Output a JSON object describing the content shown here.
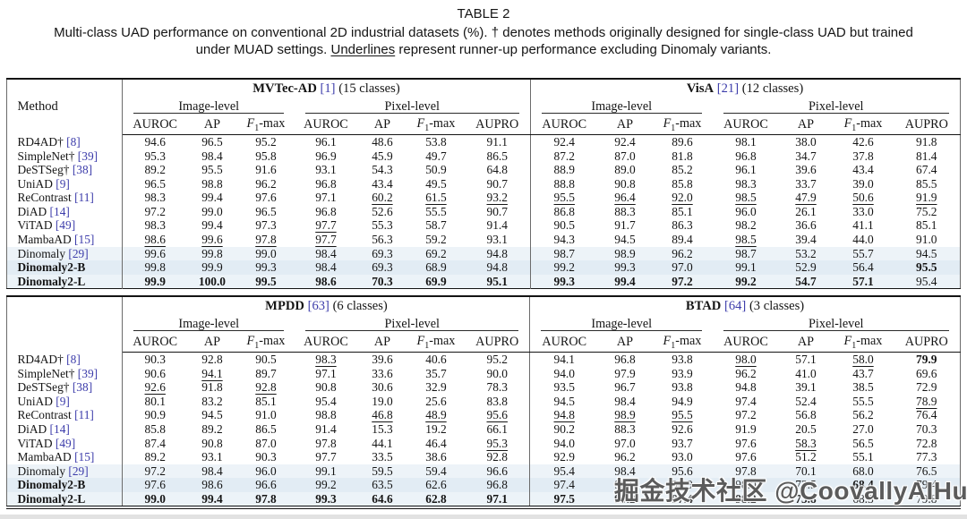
{
  "caption": {
    "title": "TABLE 2",
    "line1": "Multi-class UAD performance on conventional 2D industrial datasets (%). † denotes methods originally designed for single-class UAD but trained",
    "line2_pre": "under MUAD settings. ",
    "line2_underlined": "Underlines",
    "line2_post": " represent runner-up performance excluding Dinomaly variants."
  },
  "watermark": {
    "text": "掘金技术社区 @CoovallyAIHub"
  },
  "ui_colors": {
    "citation_blue": "#3c3caa",
    "row_shade_light": "#edf3f8",
    "row_shade_mid": "#e2ecf4",
    "rule_black": "#141414"
  },
  "tables": [
    {
      "method_header": "Method",
      "datasets": [
        {
          "name": "MVTec-AD",
          "cite": "[1]",
          "classes": "(15 classes)"
        },
        {
          "name": "VisA",
          "cite": "[21]",
          "classes": "(12 classes)"
        }
      ],
      "levels": [
        "Image-level",
        "Pixel-level"
      ],
      "metrics": [
        "AUROC",
        "AP",
        "F1-max",
        "AUROC",
        "AP",
        "F1-max",
        "AUPRO"
      ],
      "rows": [
        {
          "method": "RD4AD†",
          "cite": "[8]",
          "emph": false,
          "shade": 0,
          "v": [
            "94.6",
            "96.5",
            "95.2",
            "96.1",
            "48.6",
            "53.8",
            "91.1",
            "92.4",
            "92.4",
            "89.6",
            "98.1",
            "38.0",
            "42.6",
            "91.8"
          ],
          "s": ".............."
        },
        {
          "method": "SimpleNet†",
          "cite": "[39]",
          "emph": false,
          "shade": 0,
          "v": [
            "95.3",
            "98.4",
            "95.8",
            "96.9",
            "45.9",
            "49.7",
            "86.5",
            "87.2",
            "87.0",
            "81.8",
            "96.8",
            "34.7",
            "37.8",
            "81.4"
          ],
          "s": ".............."
        },
        {
          "method": "DeSTSeg†",
          "cite": "[38]",
          "emph": false,
          "shade": 0,
          "v": [
            "89.2",
            "95.5",
            "91.6",
            "93.1",
            "54.3",
            "50.9",
            "64.8",
            "88.9",
            "89.0",
            "85.2",
            "96.1",
            "39.6",
            "43.4",
            "67.4"
          ],
          "s": ".............."
        },
        {
          "method": "UniAD",
          "cite": "[9]",
          "emph": false,
          "shade": 0,
          "v": [
            "96.5",
            "98.8",
            "96.2",
            "96.8",
            "43.4",
            "49.5",
            "90.7",
            "88.8",
            "90.8",
            "85.8",
            "98.3",
            "33.7",
            "39.0",
            "85.5"
          ],
          "s": ".............."
        },
        {
          "method": "ReContrast",
          "cite": "[11]",
          "emph": false,
          "shade": 0,
          "v": [
            "98.3",
            "99.4",
            "97.6",
            "97.1",
            "60.2",
            "61.5",
            "93.2",
            "95.5",
            "96.4",
            "92.0",
            "98.5",
            "47.9",
            "50.6",
            "91.9"
          ],
          "s": "....uuuuuuuuuu"
        },
        {
          "method": "DiAD",
          "cite": "[14]",
          "emph": false,
          "shade": 0,
          "v": [
            "97.2",
            "99.0",
            "96.5",
            "96.8",
            "52.6",
            "55.5",
            "90.7",
            "86.8",
            "88.3",
            "85.1",
            "96.0",
            "26.1",
            "33.0",
            "75.2"
          ],
          "s": ".............."
        },
        {
          "method": "ViTAD",
          "cite": "[49]",
          "emph": false,
          "shade": 0,
          "v": [
            "98.3",
            "99.4",
            "97.3",
            "97.7",
            "55.3",
            "58.7",
            "91.4",
            "90.5",
            "91.7",
            "86.3",
            "98.2",
            "36.6",
            "41.1",
            "85.1"
          ],
          "s": "...u.........."
        },
        {
          "method": "MambaAD",
          "cite": "[15]",
          "emph": false,
          "shade": 0,
          "v": [
            "98.6",
            "99.6",
            "97.8",
            "97.7",
            "56.3",
            "59.2",
            "93.1",
            "94.3",
            "94.5",
            "89.4",
            "98.5",
            "39.4",
            "44.0",
            "91.0"
          ],
          "s": "uuuu......u..."
        },
        {
          "method": "Dinomaly",
          "cite": "[29]",
          "emph": false,
          "shade": 1,
          "v": [
            "99.6",
            "99.8",
            "99.0",
            "98.4",
            "69.3",
            "69.2",
            "94.8",
            "98.7",
            "98.9",
            "96.2",
            "98.7",
            "53.2",
            "55.7",
            "94.5"
          ],
          "s": ".............."
        },
        {
          "method": "Dinomaly2-B",
          "cite": "",
          "emph": true,
          "shade": 2,
          "v": [
            "99.8",
            "99.9",
            "99.3",
            "98.4",
            "69.3",
            "68.9",
            "94.8",
            "99.2",
            "99.3",
            "97.0",
            "99.1",
            "52.9",
            "56.4",
            "95.5"
          ],
          "s": ".............b"
        },
        {
          "method": "Dinomaly2-L",
          "cite": "",
          "emph": true,
          "shade": 3,
          "v": [
            "99.9",
            "100.0",
            "99.5",
            "98.6",
            "70.3",
            "69.9",
            "95.1",
            "99.3",
            "99.4",
            "97.2",
            "99.2",
            "54.7",
            "57.1",
            "95.4"
          ],
          "s": "bbbbbbbbbbbbb."
        }
      ]
    },
    {
      "method_header": "",
      "datasets": [
        {
          "name": "MPDD",
          "cite": "[63]",
          "classes": "(6 classes)"
        },
        {
          "name": "BTAD",
          "cite": "[64]",
          "classes": "(3 classes)"
        }
      ],
      "levels": [
        "Image-level",
        "Pixel-level"
      ],
      "metrics": [
        "AUROC",
        "AP",
        "F1-max",
        "AUROC",
        "AP",
        "F1-max",
        "AUPRO"
      ],
      "rows": [
        {
          "method": "RD4AD†",
          "cite": "[8]",
          "emph": false,
          "shade": 0,
          "v": [
            "90.3",
            "92.8",
            "90.5",
            "98.3",
            "39.6",
            "40.6",
            "95.2",
            "94.1",
            "96.8",
            "93.8",
            "98.0",
            "57.1",
            "58.0",
            "79.9"
          ],
          "s": "...u......u.ub"
        },
        {
          "method": "SimpleNet†",
          "cite": "[39]",
          "emph": false,
          "shade": 0,
          "v": [
            "90.6",
            "94.1",
            "89.7",
            "97.1",
            "33.6",
            "35.7",
            "90.0",
            "94.0",
            "97.9",
            "93.9",
            "96.2",
            "41.0",
            "43.7",
            "69.6"
          ],
          "s": ".u............"
        },
        {
          "method": "DeSTSeg†",
          "cite": "[38]",
          "emph": false,
          "shade": 0,
          "v": [
            "92.6",
            "91.8",
            "92.8",
            "90.8",
            "30.6",
            "32.9",
            "78.3",
            "93.5",
            "96.7",
            "93.8",
            "94.8",
            "39.1",
            "38.5",
            "72.9"
          ],
          "s": "u.u..........."
        },
        {
          "method": "UniAD",
          "cite": "[9]",
          "emph": false,
          "shade": 0,
          "v": [
            "80.1",
            "83.2",
            "85.1",
            "95.4",
            "19.0",
            "25.6",
            "83.8",
            "94.5",
            "98.4",
            "94.9",
            "97.4",
            "52.4",
            "55.5",
            "78.9"
          ],
          "s": ".............u"
        },
        {
          "method": "ReContrast",
          "cite": "[11]",
          "emph": false,
          "shade": 0,
          "v": [
            "90.9",
            "94.5",
            "91.0",
            "98.8",
            "46.8",
            "48.9",
            "95.6",
            "94.8",
            "98.9",
            "95.5",
            "97.2",
            "56.8",
            "56.2",
            "76.4"
          ],
          "s": "....uuuuuu...."
        },
        {
          "method": "DiAD",
          "cite": "[14]",
          "emph": false,
          "shade": 0,
          "v": [
            "85.8",
            "89.2",
            "86.5",
            "91.4",
            "15.3",
            "19.2",
            "66.1",
            "90.2",
            "88.3",
            "92.6",
            "91.9",
            "20.5",
            "27.0",
            "70.3"
          ],
          "s": ".............."
        },
        {
          "method": "ViTAD",
          "cite": "[49]",
          "emph": false,
          "shade": 0,
          "v": [
            "87.4",
            "90.8",
            "87.0",
            "97.8",
            "44.1",
            "46.4",
            "95.3",
            "94.0",
            "97.0",
            "93.7",
            "97.6",
            "58.3",
            "56.5",
            "72.8"
          ],
          "s": "......u....u.."
        },
        {
          "method": "MambaAD",
          "cite": "[15]",
          "emph": false,
          "shade": 0,
          "v": [
            "89.2",
            "93.1",
            "90.3",
            "97.7",
            "33.5",
            "38.6",
            "92.8",
            "92.9",
            "96.2",
            "93.0",
            "97.6",
            "51.2",
            "55.1",
            "77.3"
          ],
          "s": ".............."
        },
        {
          "method": "Dinomaly",
          "cite": "[29]",
          "emph": false,
          "shade": 1,
          "v": [
            "97.2",
            "98.4",
            "96.0",
            "99.1",
            "59.5",
            "59.4",
            "96.6",
            "95.4",
            "98.4",
            "95.6",
            "97.8",
            "70.1",
            "68.0",
            "76.5"
          ],
          "s": ".............."
        },
        {
          "method": "Dinomaly2-B",
          "cite": "",
          "emph": true,
          "shade": 2,
          "v": [
            "97.6",
            "98.6",
            "96.6",
            "99.2",
            "63.5",
            "62.6",
            "96.8",
            "97.4",
            "98.8",
            "96.9",
            "98.0",
            "73.5",
            "68.4",
            "79.4"
          ],
          "s": "............b."
        },
        {
          "method": "Dinomaly2-L",
          "cite": "",
          "emph": true,
          "shade": 3,
          "v": [
            "99.0",
            "99.4",
            "97.8",
            "99.3",
            "64.6",
            "62.8",
            "97.1",
            "97.5",
            "99.2",
            "97.4",
            "98.2",
            "73.8",
            "68.3",
            "79.8"
          ],
          "s": "bbbbbbbbbbbb.."
        }
      ]
    }
  ]
}
